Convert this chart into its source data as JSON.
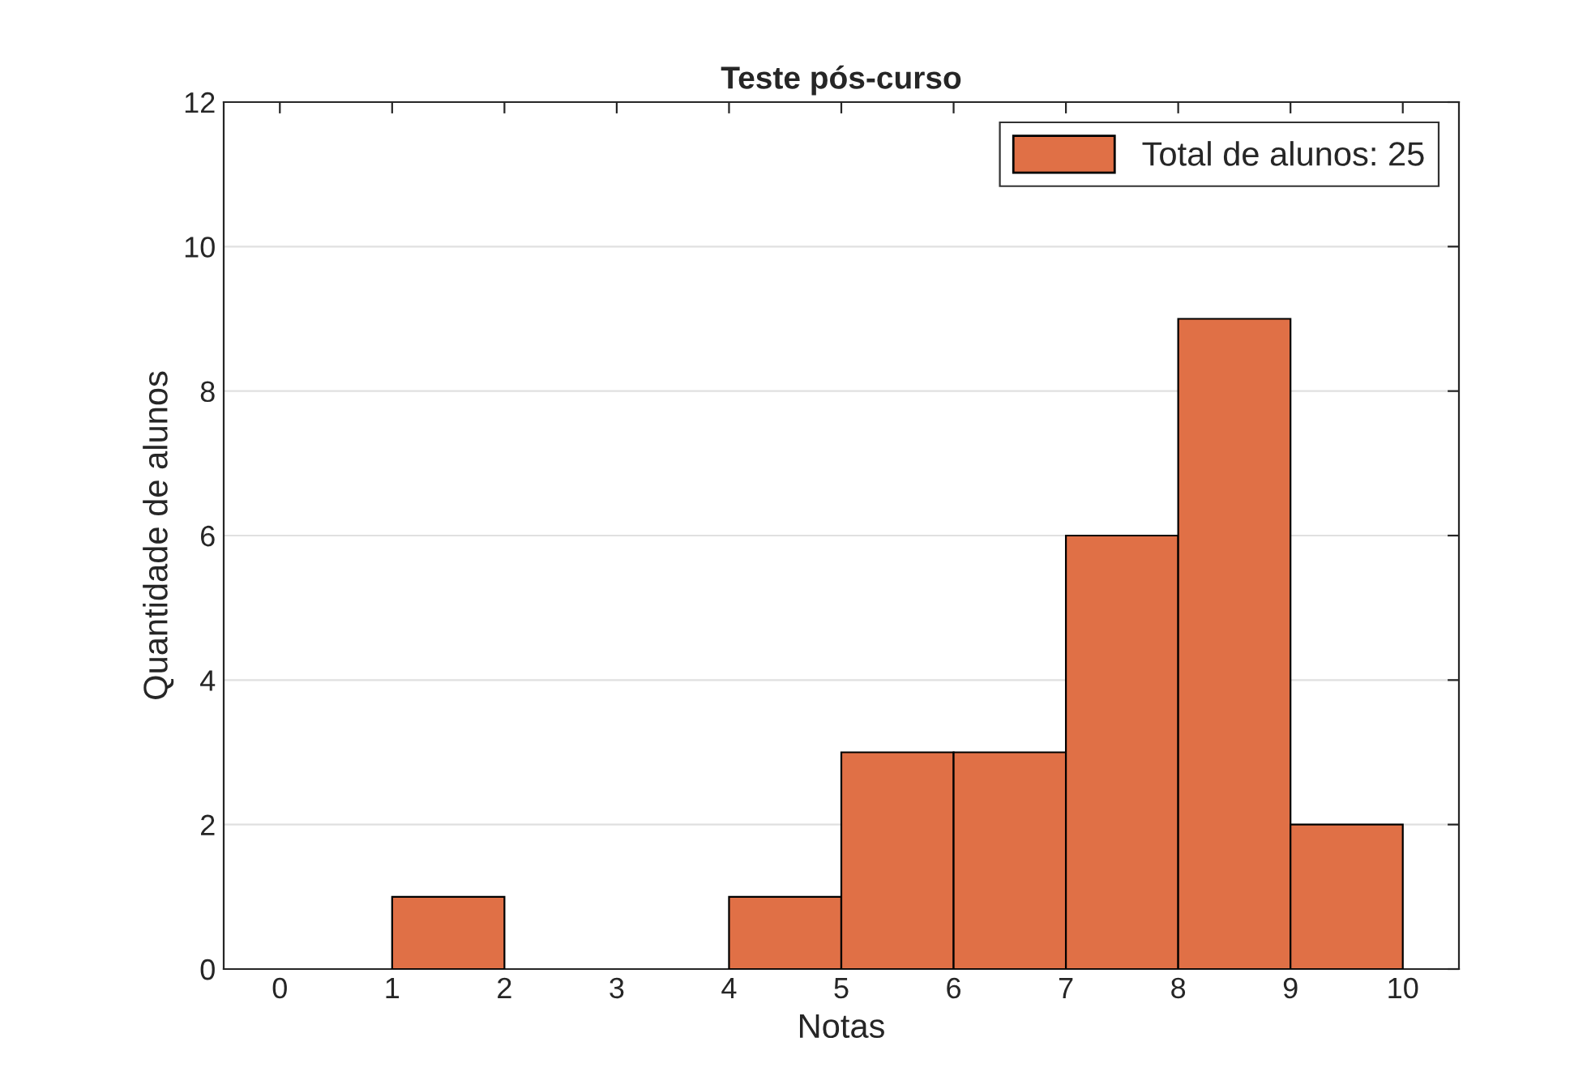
{
  "chart_data": {
    "type": "histogram",
    "title": "Teste pós-curso",
    "xlabel": "Notas",
    "ylabel": "Quantidade de alunos",
    "bins": [
      0,
      1,
      2,
      3,
      4,
      5,
      6,
      7,
      8,
      9,
      10
    ],
    "series": [
      {
        "name": "Total de alunos: 25",
        "color": "#e07046",
        "values": [
          0,
          1,
          0,
          0,
          1,
          3,
          3,
          6,
          9,
          2
        ]
      }
    ],
    "xlim": [
      -0.5,
      10.5
    ],
    "xticks": [
      0,
      1,
      2,
      3,
      4,
      5,
      6,
      7,
      8,
      9,
      10
    ],
    "ylim": [
      0,
      12
    ],
    "yticks": [
      0,
      2,
      4,
      6,
      8,
      10,
      12
    ],
    "grid": "y",
    "legend": "top right"
  }
}
